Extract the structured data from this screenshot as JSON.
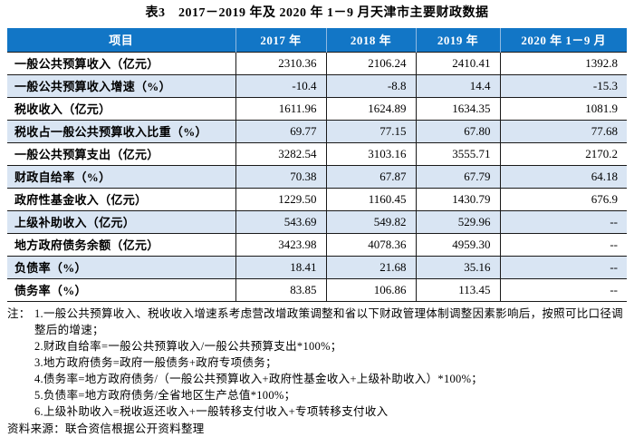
{
  "title": "表3　2017－2019 年及 2020 年 1－9 月天津市主要财政数据",
  "table": {
    "columns": [
      "项目",
      "2017 年",
      "2018 年",
      "2019 年",
      "2020 年 1－9 月"
    ],
    "rows": [
      {
        "label": "一般公共预算收入（亿元）",
        "values": [
          "2310.36",
          "2106.24",
          "2410.41",
          "1392.8"
        ]
      },
      {
        "label": "一般公共预算收入增速（%）",
        "values": [
          "-10.4",
          "-8.8",
          "14.4",
          "-15.3"
        ]
      },
      {
        "label": "税收收入（亿元）",
        "values": [
          "1611.96",
          "1624.89",
          "1634.35",
          "1081.9"
        ]
      },
      {
        "label": "税收占一般公共预算收入比重（%）",
        "values": [
          "69.77",
          "77.15",
          "67.80",
          "77.68"
        ]
      },
      {
        "label": "一般公共预算支出（亿元）",
        "values": [
          "3282.54",
          "3103.16",
          "3555.71",
          "2170.2"
        ]
      },
      {
        "label": "财政自给率（%）",
        "values": [
          "70.38",
          "67.87",
          "67.79",
          "64.18"
        ]
      },
      {
        "label": "政府性基金收入（亿元）",
        "values": [
          "1229.50",
          "1160.45",
          "1430.79",
          "676.9"
        ]
      },
      {
        "label": "上级补助收入（亿元）",
        "values": [
          "543.69",
          "549.82",
          "529.96",
          "--"
        ]
      },
      {
        "label": "地方政府债务余额（亿元）",
        "values": [
          "3423.98",
          "4078.36",
          "4959.30",
          "--"
        ]
      },
      {
        "label": "负债率（%）",
        "values": [
          "18.41",
          "21.68",
          "35.16",
          "--"
        ]
      },
      {
        "label": "债务率（%）",
        "values": [
          "83.85",
          "106.86",
          "113.45",
          "--"
        ]
      }
    ]
  },
  "notes": {
    "prefix": "注：",
    "items": [
      "1.一般公共预算收入、税收收入增速系考虑营改增政策调整和省以下财政管理体制调整因素影响后，按照可比口径调整后的增速；",
      "2.财政自给率=一般公共预算收入/一般公共预算支出*100%；",
      "3.地方政府债务=政府一般债务+政府专项债务；",
      "4.债务率=地方政府债务/（一般公共预算收入+政府性基金收入+上级补助收入）*100%；",
      "5.负债率=地方政府债务/全省地区生产总值*100%；",
      "6.上级补助收入=税收返还收入+一般转移支付收入+专项转移支付收入"
    ],
    "source": "资料来源：联合资信根据公开资料整理"
  },
  "colors": {
    "header_bg": "#1276C6",
    "header_text": "#FFFFFF",
    "row_alt_bg": "#D9E5F3",
    "border": "#1A1A1A"
  }
}
